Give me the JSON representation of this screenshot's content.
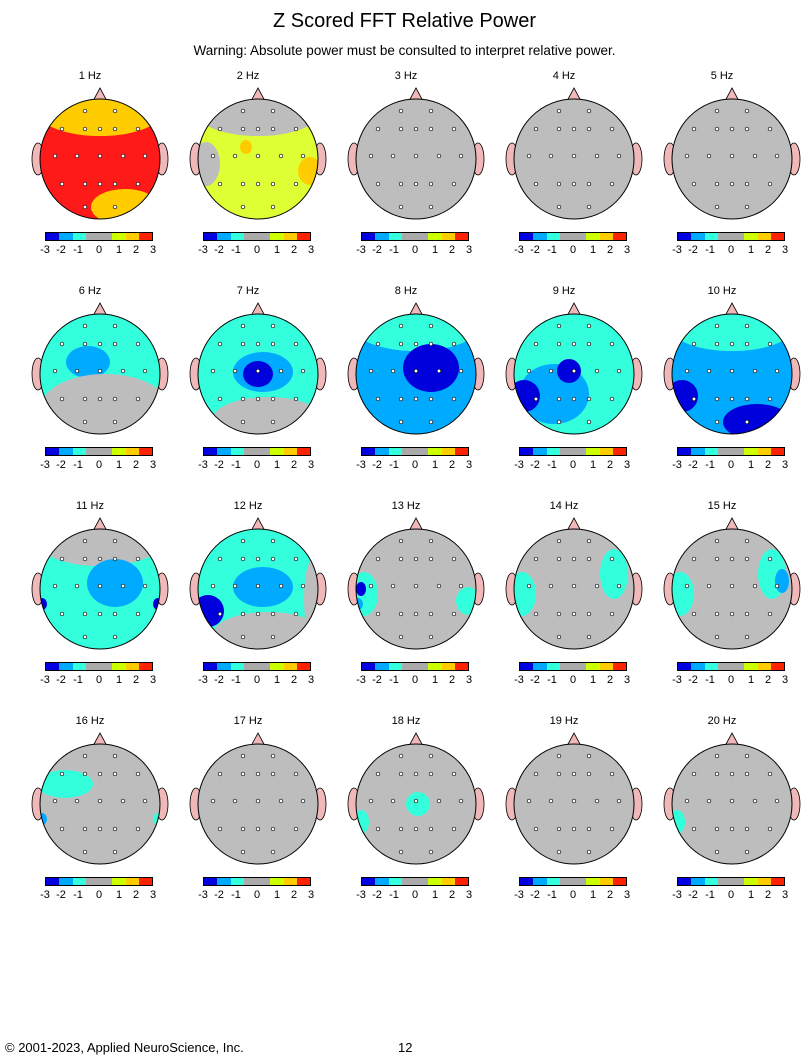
{
  "header": {
    "title": "Z Scored FFT Relative Power",
    "warning": "Warning:  Absolute power must be consulted to interpret relative power."
  },
  "footer": {
    "copyright": "© 2001-2023, Applied NeuroScience, Inc.",
    "page_number": "12"
  },
  "colorbar": {
    "tick_labels": [
      "-3",
      "-2",
      "-1",
      "0",
      "1",
      "2",
      "3"
    ],
    "colors": [
      "#0000e0",
      "#00aaff",
      "#33ffdd",
      "#aaaaaa",
      "#aaaaaa",
      "#ccff00",
      "#ffcc00",
      "#ff2200"
    ]
  },
  "scale": {
    "z_min": -3,
    "z_max": 3,
    "level_colors": {
      "-3": "#0000dd",
      "-2": "#00aaff",
      "-1": "#33ffdd",
      "0": "#bdbdbd",
      "1": "#ddff33",
      "2": "#ffcc00",
      "3": "#ff1a1a"
    }
  },
  "maps": [
    {
      "label": "1 Hz",
      "background_level": 3,
      "blobs": [
        {
          "level": 2,
          "region": "frontal"
        },
        {
          "level": 2,
          "region": "occipital-right"
        }
      ]
    },
    {
      "label": "2 Hz",
      "background_level": 1,
      "blobs": [
        {
          "level": 0,
          "region": "frontal"
        },
        {
          "level": 0,
          "region": "left-temporal"
        },
        {
          "level": 2,
          "region": "right-temporal"
        },
        {
          "level": 2,
          "region": "left-central-spot"
        }
      ]
    },
    {
      "label": "3 Hz",
      "background_level": 0,
      "blobs": []
    },
    {
      "label": "4 Hz",
      "background_level": 0,
      "blobs": []
    },
    {
      "label": "5 Hz",
      "background_level": 0,
      "blobs": []
    },
    {
      "label": "6 Hz",
      "background_level": -1,
      "blobs": [
        {
          "level": -2,
          "region": "left-frontal-central"
        },
        {
          "level": 0,
          "region": "posterior"
        }
      ]
    },
    {
      "label": "7 Hz",
      "background_level": -1,
      "blobs": [
        {
          "level": -2,
          "region": "central"
        },
        {
          "level": -3,
          "region": "central-core"
        },
        {
          "level": 0,
          "region": "posterior-lower"
        }
      ]
    },
    {
      "label": "8 Hz",
      "background_level": -2,
      "blobs": [
        {
          "level": -1,
          "region": "frontal"
        },
        {
          "level": -3,
          "region": "central-right"
        }
      ]
    },
    {
      "label": "9 Hz",
      "background_level": -1,
      "blobs": [
        {
          "level": -2,
          "region": "left-posterior"
        },
        {
          "level": -3,
          "region": "central-spot"
        },
        {
          "level": -3,
          "region": "left-temporal-posterior"
        }
      ]
    },
    {
      "label": "10 Hz",
      "background_level": -2,
      "blobs": [
        {
          "level": -1,
          "region": "frontal"
        },
        {
          "level": -3,
          "region": "left-temporal-posterior"
        },
        {
          "level": -3,
          "region": "occipital-right"
        }
      ]
    },
    {
      "label": "11 Hz",
      "background_level": -1,
      "blobs": [
        {
          "level": 0,
          "region": "frontal"
        },
        {
          "level": -2,
          "region": "central-right"
        },
        {
          "level": -3,
          "region": "left-temporal-edge"
        },
        {
          "level": -3,
          "region": "right-temporal-edge"
        }
      ]
    },
    {
      "label": "12 Hz",
      "background_level": -1,
      "blobs": [
        {
          "level": 0,
          "region": "right-edge"
        },
        {
          "level": -2,
          "region": "central"
        },
        {
          "level": -3,
          "region": "left-temporal-posterior"
        },
        {
          "level": 0,
          "region": "posterior-lower"
        }
      ]
    },
    {
      "label": "13 Hz",
      "background_level": 0,
      "blobs": [
        {
          "level": -1,
          "region": "left-temporal"
        },
        {
          "level": -2,
          "region": "left-temporal-edge"
        },
        {
          "level": -3,
          "region": "left-temporal-spot"
        },
        {
          "level": -1,
          "region": "right-temporal"
        }
      ]
    },
    {
      "label": "14 Hz",
      "background_level": 0,
      "blobs": [
        {
          "level": -1,
          "region": "left-temporal"
        },
        {
          "level": -1,
          "region": "right-frontal-temporal"
        }
      ]
    },
    {
      "label": "15 Hz",
      "background_level": 0,
      "blobs": [
        {
          "level": -1,
          "region": "left-temporal"
        },
        {
          "level": -1,
          "region": "right-frontal-temporal"
        },
        {
          "level": -2,
          "region": "right-frontal-spot"
        }
      ]
    },
    {
      "label": "16 Hz",
      "background_level": 0,
      "blobs": [
        {
          "level": -1,
          "region": "left-frontal"
        },
        {
          "level": -2,
          "region": "left-temporal-edge"
        },
        {
          "level": -1,
          "region": "right-temporal-edge"
        }
      ]
    },
    {
      "label": "17 Hz",
      "background_level": 0,
      "blobs": []
    },
    {
      "label": "18 Hz",
      "background_level": 0,
      "blobs": [
        {
          "level": -1,
          "region": "left-temporal-small"
        },
        {
          "level": -1,
          "region": "central-small"
        }
      ]
    },
    {
      "label": "19 Hz",
      "background_level": 0,
      "blobs": []
    },
    {
      "label": "20 Hz",
      "background_level": 0,
      "blobs": [
        {
          "level": -1,
          "region": "left-temporal-small"
        }
      ]
    }
  ]
}
